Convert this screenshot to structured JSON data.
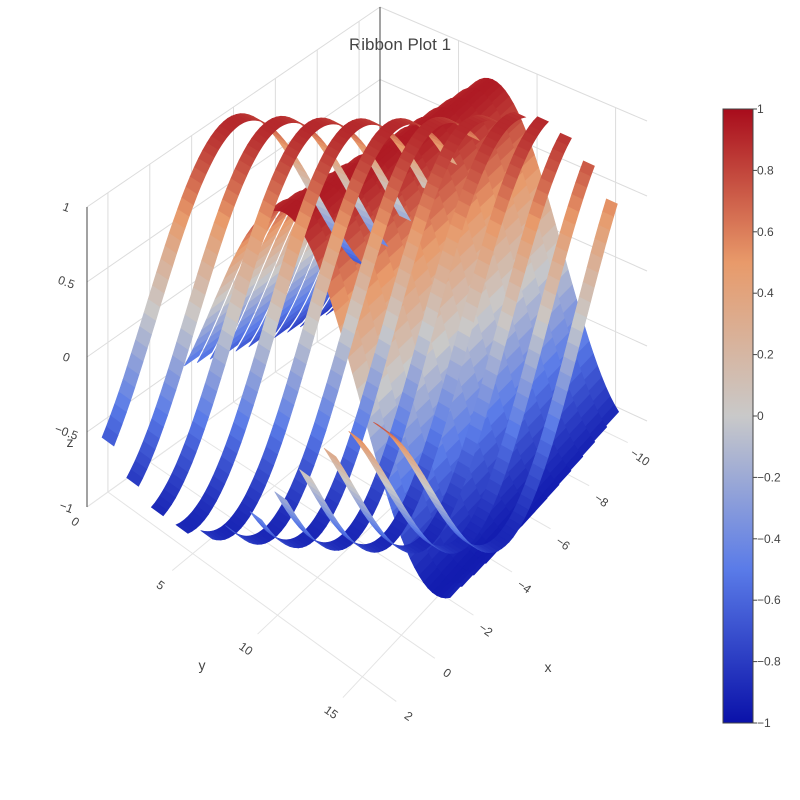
{
  "chart_data": {
    "type": "ribbon",
    "title": "Ribbon Plot 1",
    "axes": {
      "x": {
        "label": "x",
        "range": [
          -11,
          3
        ],
        "ticks": [
          -10,
          -8,
          -6,
          -4,
          -2,
          0,
          2
        ]
      },
      "y": {
        "label": "y",
        "range": [
          0,
          17
        ],
        "ticks": [
          0,
          5,
          10,
          15
        ]
      },
      "z": {
        "label": "z",
        "range": [
          -1,
          1
        ],
        "ticks": [
          -1,
          -0.5,
          0,
          0.5,
          1
        ]
      }
    },
    "grid": true,
    "colorscale": {
      "name": "coolwarm",
      "range": [
        -1,
        1
      ],
      "ticks": [
        1,
        0.8,
        0.6,
        0.4,
        0.2,
        0,
        -0.2,
        -0.4,
        -0.6,
        -0.8,
        -1
      ],
      "colors": [
        "#0a11a9",
        "#5a7be8",
        "#c9c9c9",
        "#e89a6a",
        "#a80c1c"
      ]
    },
    "series": [
      {
        "function": "z = sin(y - k)",
        "x_range": [
          -10,
          -2
        ],
        "y_range": [
          0,
          16
        ],
        "ribbons": 14
      },
      {
        "function": "z = cos(x + k)",
        "x_range": [
          -10,
          2
        ],
        "y_range": [
          0,
          16
        ],
        "ribbons": 12
      }
    ]
  }
}
